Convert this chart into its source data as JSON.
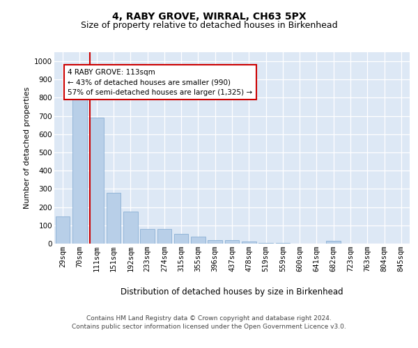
{
  "title1": "4, RABY GROVE, WIRRAL, CH63 5PX",
  "title2": "Size of property relative to detached houses in Birkenhead",
  "xlabel": "Distribution of detached houses by size in Birkenhead",
  "ylabel": "Number of detached properties",
  "categories": [
    "29sqm",
    "70sqm",
    "111sqm",
    "151sqm",
    "192sqm",
    "233sqm",
    "274sqm",
    "315sqm",
    "355sqm",
    "396sqm",
    "437sqm",
    "478sqm",
    "519sqm",
    "559sqm",
    "600sqm",
    "641sqm",
    "682sqm",
    "723sqm",
    "763sqm",
    "804sqm",
    "845sqm"
  ],
  "values": [
    150,
    830,
    690,
    280,
    175,
    80,
    80,
    55,
    40,
    20,
    20,
    10,
    5,
    5,
    0,
    0,
    15,
    0,
    0,
    0,
    0
  ],
  "bar_color": "#b8cfe8",
  "bar_edge_color": "#8aafd4",
  "property_line_index": 2,
  "property_line_color": "#cc0000",
  "annotation_text": "4 RABY GROVE: 113sqm\n← 43% of detached houses are smaller (990)\n57% of semi-detached houses are larger (1,325) →",
  "annotation_box_facecolor": "#ffffff",
  "annotation_box_edgecolor": "#cc0000",
  "ylim": [
    0,
    1050
  ],
  "yticks": [
    0,
    100,
    200,
    300,
    400,
    500,
    600,
    700,
    800,
    900,
    1000
  ],
  "plot_bg_color": "#dde8f5",
  "footer1": "Contains HM Land Registry data © Crown copyright and database right 2024.",
  "footer2": "Contains public sector information licensed under the Open Government Licence v3.0.",
  "title1_fontsize": 10,
  "title2_fontsize": 9,
  "xlabel_fontsize": 8.5,
  "ylabel_fontsize": 8,
  "tick_fontsize": 7.5,
  "annotation_fontsize": 7.5,
  "footer_fontsize": 6.5
}
